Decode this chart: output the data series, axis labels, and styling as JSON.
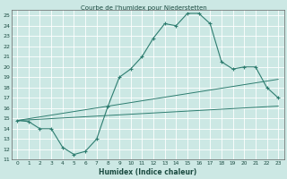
{
  "title": "Courbe de l'humidex pour Niederstetten",
  "xlabel": "Humidex (Indice chaleur)",
  "bg_color": "#cce8e4",
  "grid_color": "#ffffff",
  "line_color": "#2e7d70",
  "text_color": "#1a4a40",
  "xlim": [
    -0.5,
    23.5
  ],
  "ylim": [
    11,
    25.5
  ],
  "xticks": [
    0,
    1,
    2,
    3,
    4,
    5,
    6,
    7,
    8,
    9,
    10,
    11,
    12,
    13,
    14,
    15,
    16,
    17,
    18,
    19,
    20,
    21,
    22,
    23
  ],
  "yticks": [
    11,
    12,
    13,
    14,
    15,
    16,
    17,
    18,
    19,
    20,
    21,
    22,
    23,
    24,
    25
  ],
  "series1_x": [
    0,
    1,
    2,
    3,
    4,
    5,
    6,
    7,
    8,
    9,
    10,
    11,
    12,
    13,
    14,
    15,
    16,
    17,
    18,
    19,
    20,
    21,
    22,
    23
  ],
  "series1_y": [
    14.8,
    14.7,
    14.0,
    14.0,
    12.2,
    11.5,
    11.8,
    13.0,
    16.2,
    19.0,
    19.8,
    21.0,
    22.8,
    24.2,
    24.0,
    25.2,
    25.2,
    24.2,
    20.5,
    19.8,
    20.0,
    20.0,
    18.0,
    17.0
  ],
  "series2_x": [
    0,
    23
  ],
  "series2_y": [
    14.8,
    16.2
  ],
  "series3_x": [
    0,
    23
  ],
  "series3_y": [
    14.8,
    18.8
  ]
}
